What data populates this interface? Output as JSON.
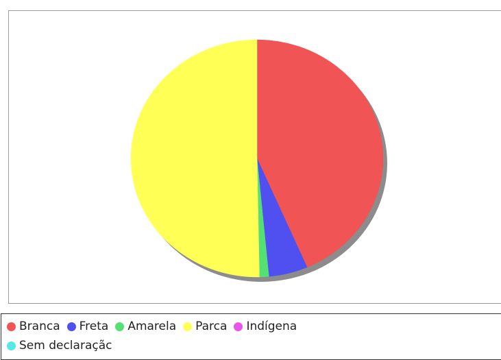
{
  "chart_data": {
    "type": "pie",
    "title": "",
    "legend_position": "bottom",
    "slices": [
      {
        "label": "Branca",
        "value": 43.5,
        "color": "#f05454"
      },
      {
        "label": "Freta",
        "value": 5.0,
        "color": "#5050f0"
      },
      {
        "label": "Amarela",
        "value": 1.2,
        "color": "#55e075"
      },
      {
        "label": "Parca",
        "value": 50.3,
        "color": "#ffff55"
      },
      {
        "label": "Indígena",
        "value": 0,
        "color": "#e855e8"
      },
      {
        "label": "Sem declaraçãc",
        "value": 0,
        "color": "#55e8e8"
      }
    ]
  },
  "legend": {
    "row1": [
      {
        "label": "Branca",
        "color": "#f05454"
      },
      {
        "label": "Freta",
        "color": "#5050f0"
      },
      {
        "label": "Amarela",
        "color": "#55e075"
      },
      {
        "label": "Parca",
        "color": "#ffff55"
      },
      {
        "label": "Indígena",
        "color": "#e855e8"
      }
    ],
    "row2": [
      {
        "label": "Sem declaraçãc",
        "color": "#55e8e8"
      }
    ]
  }
}
